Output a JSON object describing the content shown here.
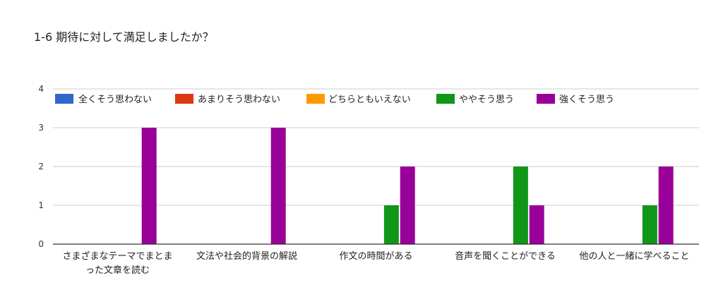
{
  "chart_data": {
    "type": "bar",
    "title": "1-6 期待に対して満足しましたか？",
    "xlabel": "",
    "ylabel": "",
    "ylim": [
      0,
      4
    ],
    "yticks": [
      0,
      1,
      2,
      3,
      4
    ],
    "grid": true,
    "legend_position": "top",
    "categories": [
      [
        "さまざまなテーマでまとま",
        "った文章を読む"
      ],
      [
        "文法や社会的背景の解説"
      ],
      [
        "作文の時間がある"
      ],
      [
        "音声を聞くことができる"
      ],
      [
        "他の人と一緒に学べること"
      ]
    ],
    "series": [
      {
        "name": "全くそう思わない",
        "color": "#3366cc",
        "values": [
          0,
          0,
          0,
          0,
          0
        ]
      },
      {
        "name": "あまりそう思わない",
        "color": "#dc3912",
        "values": [
          0,
          0,
          0,
          0,
          0
        ]
      },
      {
        "name": "どちらともいえない",
        "color": "#ff9900",
        "values": [
          0,
          0,
          0,
          0,
          0
        ]
      },
      {
        "name": "ややそう思う",
        "color": "#109618",
        "values": [
          0,
          0,
          1,
          2,
          1
        ]
      },
      {
        "name": "強くそう思う",
        "color": "#990099",
        "values": [
          3,
          3,
          2,
          1,
          2
        ]
      }
    ]
  }
}
